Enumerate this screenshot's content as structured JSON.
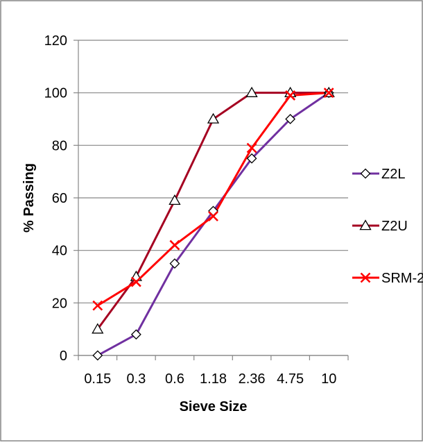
{
  "chart_data": {
    "type": "line",
    "xlabel": "Sieve Size",
    "ylabel": "% Passing",
    "categories": [
      "0.15",
      "0.3",
      "0.6",
      "1.18",
      "2.36",
      "4.75",
      "10"
    ],
    "ylim": [
      0,
      120
    ],
    "yticks": [
      "0",
      "20",
      "40",
      "60",
      "80",
      "100",
      "120"
    ],
    "grid": "horizontal",
    "legend_position": "right",
    "series": [
      {
        "name": "Z2L",
        "color": "#7030A0",
        "marker": "diamond",
        "values": [
          0,
          8,
          35,
          55,
          75,
          90,
          100
        ]
      },
      {
        "name": "Z2U",
        "color": "#A50021",
        "marker": "triangle",
        "values": [
          10,
          30,
          59,
          90,
          100,
          100,
          100
        ]
      },
      {
        "name": "SRM-2",
        "color": "#FF0000",
        "marker": "x",
        "values": [
          19,
          28,
          42,
          53,
          79,
          99,
          100
        ]
      }
    ]
  }
}
